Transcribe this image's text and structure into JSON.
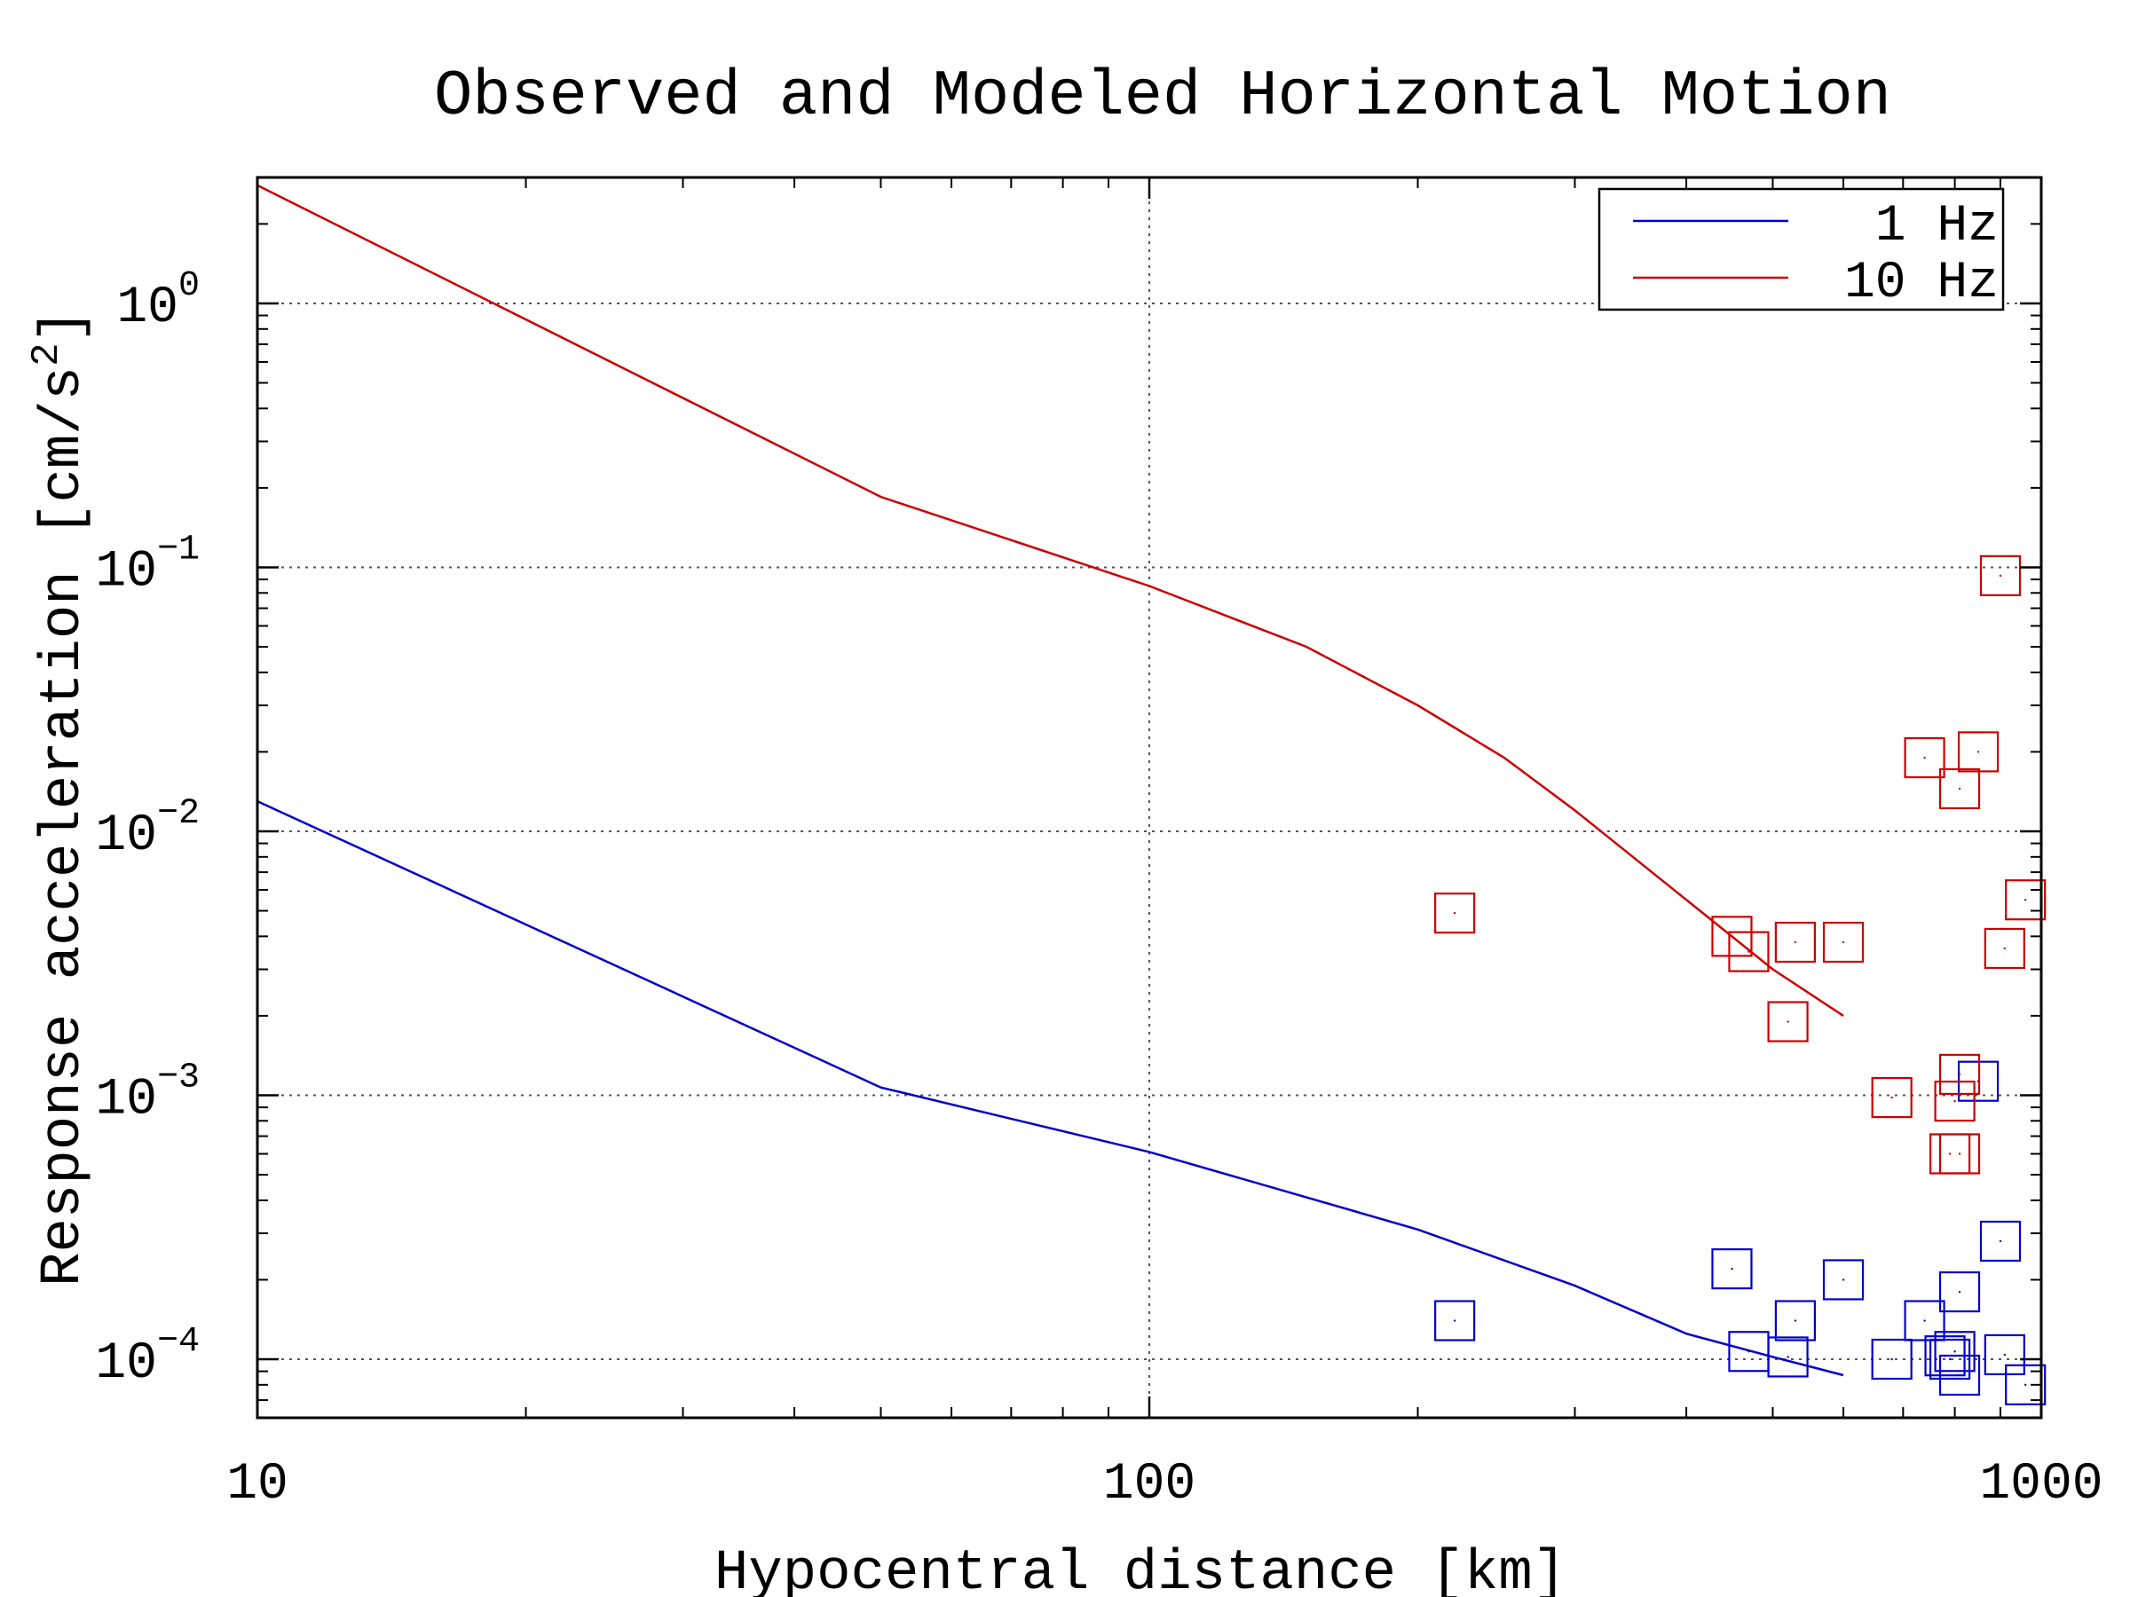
{
  "chart_data": {
    "type": "scatter",
    "title": "Observed and Modeled Horizontal Motion",
    "xlabel": "Hypocentral distance [km]",
    "ylabel": "Response acceleration [cm/s",
    "ylabel_superscript": "2",
    "ylabel_suffix": "]",
    "x_scale": "log",
    "y_scale": "log",
    "xlim": [
      10,
      1000
    ],
    "ylim": [
      6e-05,
      3
    ],
    "x_ticks": [
      {
        "value": 10,
        "label": "10"
      },
      {
        "value": 100,
        "label": "100"
      },
      {
        "value": 1000,
        "label": "1000"
      }
    ],
    "y_ticks": [
      {
        "value": 0.0001,
        "base": "10",
        "exp": "−4"
      },
      {
        "value": 0.001,
        "base": "10",
        "exp": "−3"
      },
      {
        "value": 0.01,
        "base": "10",
        "exp": "−2"
      },
      {
        "value": 0.1,
        "base": "10",
        "exp": "−1"
      },
      {
        "value": 1,
        "base": "10",
        "exp": "0"
      }
    ],
    "grid": true,
    "legend_position": "top-right",
    "series": [
      {
        "name": "1 Hz",
        "color": "#0000cc",
        "line": [
          [
            10,
            0.013
          ],
          [
            50,
            0.00107
          ],
          [
            100,
            0.00061
          ],
          [
            200,
            0.00031
          ],
          [
            300,
            0.00019
          ],
          [
            400,
            0.000125
          ],
          [
            500,
            0.000102
          ],
          [
            600,
            8.7e-05
          ]
        ],
        "observed": [
          [
            220,
            0.00014
          ],
          [
            450,
            0.00022
          ],
          [
            470,
            0.000107
          ],
          [
            520,
            0.000102
          ],
          [
            530,
            0.00014
          ],
          [
            600,
            0.0002
          ],
          [
            680,
            0.0001
          ],
          [
            740,
            0.00014
          ],
          [
            780,
            0.000103
          ],
          [
            790,
            0.0001
          ],
          [
            800,
            0.000107
          ],
          [
            810,
            8.7e-05
          ],
          [
            810,
            0.00018
          ],
          [
            850,
            0.00113
          ],
          [
            900,
            0.00028
          ],
          [
            910,
            0.000104
          ],
          [
            960,
            8e-05
          ]
        ]
      },
      {
        "name": "10 Hz",
        "color": "#cc0000",
        "line": [
          [
            10,
            2.8
          ],
          [
            50,
            0.185
          ],
          [
            100,
            0.085
          ],
          [
            150,
            0.05
          ],
          [
            200,
            0.03
          ],
          [
            250,
            0.019
          ],
          [
            300,
            0.012
          ],
          [
            400,
            0.0055
          ],
          [
            500,
            0.003
          ],
          [
            600,
            0.002
          ]
        ],
        "observed": [
          [
            220,
            0.0049
          ],
          [
            450,
            0.004
          ],
          [
            470,
            0.0035
          ],
          [
            520,
            0.0019
          ],
          [
            530,
            0.0038
          ],
          [
            600,
            0.0038
          ],
          [
            680,
            0.00098
          ],
          [
            740,
            0.019
          ],
          [
            790,
            0.0006
          ],
          [
            800,
            0.00095
          ],
          [
            810,
            0.0012
          ],
          [
            810,
            0.0006
          ],
          [
            810,
            0.0145
          ],
          [
            850,
            0.02
          ],
          [
            900,
            0.093
          ],
          [
            910,
            0.0036
          ],
          [
            960,
            0.0055
          ]
        ]
      }
    ]
  }
}
